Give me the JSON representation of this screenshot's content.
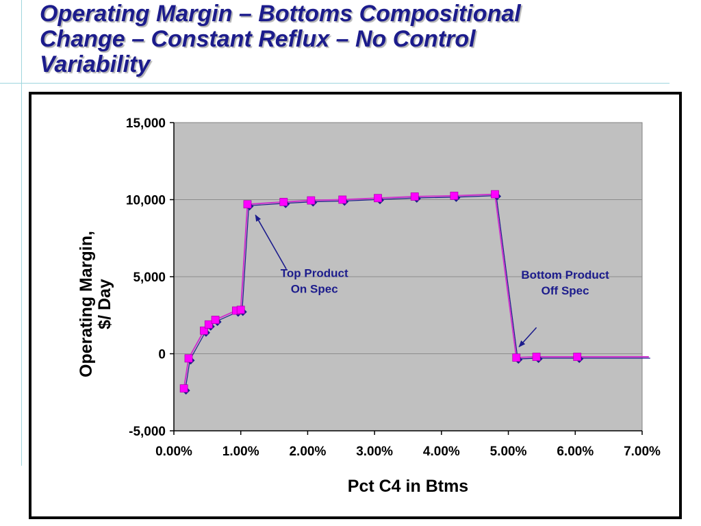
{
  "slide": {
    "title": "Operating Margin – Bottoms Compositional\nChange – Constant Reflux – No Control\nVariability"
  },
  "chart_data": {
    "type": "line",
    "title": "",
    "xlabel": "Pct C4 in Btms",
    "ylabel_lines": [
      "Operating Margin,",
      "$/ Day"
    ],
    "xlim": [
      0,
      7
    ],
    "ylim": [
      -5000,
      15000
    ],
    "x_ticks": [
      0,
      1,
      2,
      3,
      4,
      5,
      6,
      7
    ],
    "y_ticks": [
      -5000,
      0,
      5000,
      10000,
      15000
    ],
    "x_tick_labels": [
      "0.00%",
      "1.00%",
      "2.00%",
      "3.00%",
      "4.00%",
      "5.00%",
      "6.00%",
      "7.00%"
    ],
    "y_tick_labels": [
      "-5,000",
      "0",
      "5,000",
      "10,000",
      "15,000"
    ],
    "grid": "horizontal",
    "plot_background": "#c0c0c0",
    "series": [
      {
        "color": "#cc33cc",
        "marker_color": "#ff00ff",
        "underlay_marker_color": "#1c1c8c",
        "x": [
          0.15,
          0.22,
          0.45,
          0.52,
          0.62,
          0.93,
          1.0,
          1.1,
          1.64,
          2.05,
          2.52,
          3.05,
          3.6,
          4.19,
          4.8,
          5.12,
          5.42,
          6.03,
          7.1
        ],
        "y": [
          -2250,
          -300,
          1500,
          1900,
          2200,
          2800,
          2850,
          9700,
          9850,
          9950,
          10000,
          10100,
          10200,
          10250,
          10350,
          -250,
          -200,
          -200,
          -200
        ],
        "markers": [
          true,
          true,
          true,
          true,
          true,
          true,
          true,
          true,
          true,
          true,
          true,
          true,
          true,
          true,
          true,
          true,
          true,
          true,
          false
        ]
      }
    ],
    "annotations": [
      {
        "lines": [
          "Top Product",
          "On Spec"
        ],
        "anchor_x": 2.1,
        "anchor_y": 4000,
        "arrow_from": [
          1.68,
          5500
        ],
        "arrow_to": [
          1.22,
          9000
        ]
      },
      {
        "lines": [
          "Bottom Product",
          "Off Spec"
        ],
        "anchor_x": 5.85,
        "anchor_y": 3900,
        "arrow_from": [
          5.42,
          1700
        ],
        "arrow_to": [
          5.16,
          450
        ]
      }
    ]
  }
}
